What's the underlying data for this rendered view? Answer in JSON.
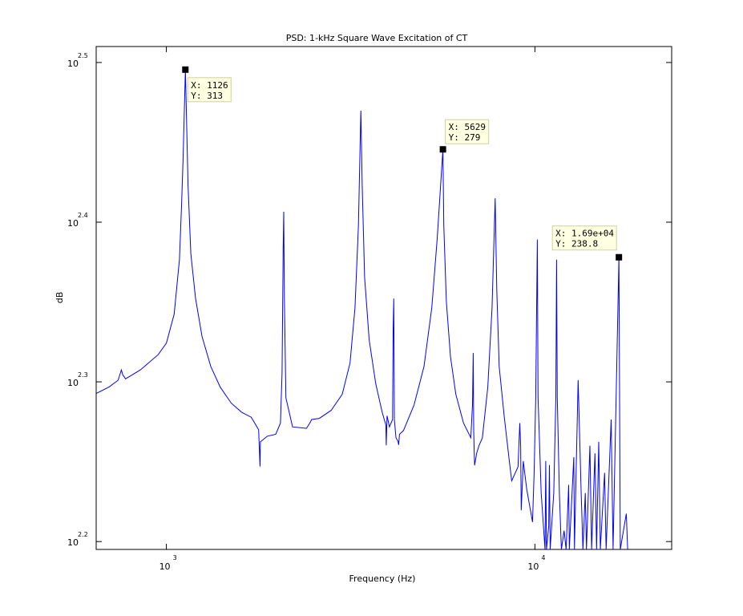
{
  "chart_data": {
    "type": "line",
    "title": "PSD: 1-kHz Square Wave Excitation of CT",
    "xlabel": "Frequency (Hz)",
    "ylabel": "dB",
    "x_scale": "log",
    "y_scale": "log",
    "xlim": [
      645,
      23500
    ],
    "ylim": [
      156.7,
      323.6
    ],
    "x_ticks": [
      {
        "base": "10",
        "exp": "3",
        "value": 1000
      },
      {
        "base": "10",
        "exp": "4",
        "value": 10000
      }
    ],
    "y_ticks": [
      {
        "base": "10",
        "exp": "2.2",
        "value": 158.49
      },
      {
        "base": "10",
        "exp": "2.3",
        "value": 199.53
      },
      {
        "base": "10",
        "exp": "2.4",
        "value": 251.19
      },
      {
        "base": "10",
        "exp": "2.5",
        "value": 316.23
      }
    ],
    "grid": false,
    "line_color": "#0000ff",
    "series": [
      {
        "points": [
          [
            645,
            196.2
          ],
          [
            700,
            198.1
          ],
          [
            740,
            200.0
          ],
          [
            755,
            203.0
          ],
          [
            762,
            201.5
          ],
          [
            775,
            200.4
          ],
          [
            850,
            203.0
          ],
          [
            950,
            207.5
          ],
          [
            1000,
            211.0
          ],
          [
            1050,
            220.0
          ],
          [
            1085,
            238.0
          ],
          [
            1100,
            258.0
          ],
          [
            1110,
            275.0
          ],
          [
            1120,
            298.0
          ],
          [
            1126,
            313.0
          ],
          [
            1132,
            298.0
          ],
          [
            1145,
            265.0
          ],
          [
            1165,
            240.0
          ],
          [
            1200,
            225.0
          ],
          [
            1250,
            213.0
          ],
          [
            1320,
            204.0
          ],
          [
            1400,
            198.0
          ],
          [
            1500,
            193.5
          ],
          [
            1600,
            191.0
          ],
          [
            1700,
            189.6
          ],
          [
            1780,
            186.2
          ],
          [
            1795,
            176.6
          ],
          [
            1800,
            183.0
          ],
          [
            1880,
            184.5
          ],
          [
            1980,
            185.0
          ],
          [
            2040,
            188.0
          ],
          [
            2060,
            202.0
          ],
          [
            2075,
            242.0
          ],
          [
            2082,
            255.0
          ],
          [
            2090,
            225.0
          ],
          [
            2110,
            195.0
          ],
          [
            2200,
            187.0
          ],
          [
            2400,
            186.6
          ],
          [
            2450,
            188.0
          ],
          [
            2480,
            189.0
          ],
          [
            2600,
            189.3
          ],
          [
            2800,
            191.5
          ],
          [
            3000,
            196.0
          ],
          [
            3150,
            205.0
          ],
          [
            3250,
            222.0
          ],
          [
            3320,
            250.0
          ],
          [
            3370,
            295.0
          ],
          [
            3400,
            265.0
          ],
          [
            3450,
            232.0
          ],
          [
            3550,
            212.0
          ],
          [
            3700,
            199.0
          ],
          [
            3850,
            191.0
          ],
          [
            3940,
            187.5
          ],
          [
            3950,
            182.1
          ],
          [
            3970,
            190.0
          ],
          [
            4030,
            187.0
          ],
          [
            4110,
            189.0
          ],
          [
            4125,
            215.0
          ],
          [
            4140,
            225.0
          ],
          [
            4155,
            189.0
          ],
          [
            4200,
            184.0
          ],
          [
            4250,
            183.2
          ],
          [
            4270,
            182.2
          ],
          [
            4290,
            185.0
          ],
          [
            4400,
            186.0
          ],
          [
            4700,
            193.0
          ],
          [
            5000,
            204.0
          ],
          [
            5250,
            222.0
          ],
          [
            5430,
            245.0
          ],
          [
            5629,
            279.0
          ],
          [
            5660,
            250.0
          ],
          [
            5750,
            224.0
          ],
          [
            5900,
            207.0
          ],
          [
            6100,
            196.0
          ],
          [
            6400,
            188.0
          ],
          [
            6700,
            184.1
          ],
          [
            6770,
            193.0
          ],
          [
            6800,
            208.0
          ],
          [
            6820,
            186.0
          ],
          [
            6860,
            176.9
          ],
          [
            6950,
            180.0
          ],
          [
            7050,
            182.0
          ],
          [
            7200,
            184.0
          ],
          [
            7450,
            198.0
          ],
          [
            7650,
            222.0
          ],
          [
            7800,
            260.0
          ],
          [
            7880,
            228.0
          ],
          [
            8000,
            204.0
          ],
          [
            8250,
            190.0
          ],
          [
            8500,
            179.0
          ],
          [
            8650,
            173.0
          ],
          [
            9000,
            176.5
          ],
          [
            9100,
            188.0
          ],
          [
            9150,
            182.0
          ],
          [
            9180,
            165.8
          ],
          [
            9300,
            178.0
          ],
          [
            9500,
            171.0
          ],
          [
            9850,
            163.0
          ],
          [
            9950,
            175.0
          ],
          [
            10050,
            195.0
          ],
          [
            10150,
            245.0
          ],
          [
            10200,
            195.0
          ],
          [
            10400,
            170.0
          ],
          [
            10650,
            156.7
          ],
          [
            10700,
            178.0
          ],
          [
            10750,
            156.7
          ],
          [
            10900,
            162.0
          ],
          [
            10950,
            177.0
          ],
          [
            11000,
            156.7
          ],
          [
            11250,
            170.0
          ],
          [
            11400,
            195.0
          ],
          [
            11450,
            238.0
          ],
          [
            11500,
            195.0
          ],
          [
            11650,
            170.0
          ],
          [
            11800,
            156.7
          ],
          [
            12000,
            161.0
          ],
          [
            12150,
            156.7
          ],
          [
            12350,
            172.0
          ],
          [
            12400,
            156.7
          ],
          [
            12750,
            179.0
          ],
          [
            12800,
            156.7
          ],
          [
            13100,
            200.0
          ],
          [
            13350,
            170.0
          ],
          [
            13500,
            156.7
          ],
          [
            13700,
            170.0
          ],
          [
            13800,
            156.7
          ],
          [
            14100,
            182.0
          ],
          [
            14250,
            156.7
          ],
          [
            14550,
            180.0
          ],
          [
            14700,
            156.7
          ],
          [
            14900,
            183.0
          ],
          [
            15050,
            156.7
          ],
          [
            15450,
            175.0
          ],
          [
            15600,
            156.7
          ],
          [
            16100,
            189.0
          ],
          [
            16300,
            156.7
          ],
          [
            16900,
            238.8
          ],
          [
            17050,
            156.7
          ],
          [
            17700,
            165.0
          ],
          [
            17850,
            156.7
          ]
        ]
      }
    ],
    "datatips": [
      {
        "x": 1126,
        "y": 313,
        "text_x": "X: 1126",
        "text_y": "Y: 313",
        "box": "right"
      },
      {
        "x": 5629,
        "y": 279,
        "text_x": "X: 5629",
        "text_y": "Y: 279",
        "box": "above-right"
      },
      {
        "x": 16900,
        "y": 238.8,
        "text_x": "X: 1.69e+04",
        "text_y": "Y: 238.8",
        "box": "above-left"
      }
    ]
  }
}
